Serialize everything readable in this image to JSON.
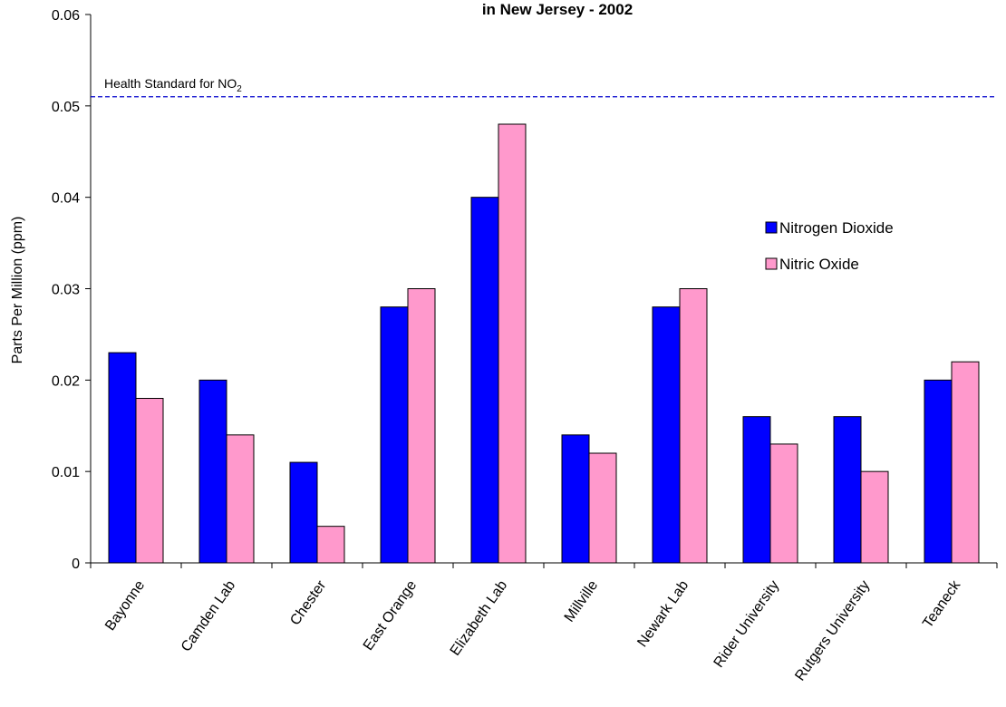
{
  "chart_data": {
    "type": "bar",
    "title": "in New Jersey - 2002",
    "xlabel": "",
    "ylabel": "Parts Per Million (ppm)",
    "ylim": [
      0,
      0.06
    ],
    "yticks": [
      "0",
      "0.01",
      "0.02",
      "0.03",
      "0.04",
      "0.05",
      "0.06"
    ],
    "grid": false,
    "legend_position": "right",
    "categories": [
      "Bayonne",
      "Camden Lab",
      "Chester",
      "East Orange",
      "Elizabeth Lab",
      "Millville",
      "Newark Lab",
      "Rider University",
      "Rutgers University",
      "Teaneck"
    ],
    "series": [
      {
        "name": "Nitrogen Dioxide",
        "color": "#0000ff",
        "values": [
          0.023,
          0.02,
          0.011,
          0.028,
          0.04,
          0.014,
          0.028,
          0.016,
          0.016,
          0.02
        ]
      },
      {
        "name": "Nitric Oxide",
        "color": "#ff99cc",
        "values": [
          0.018,
          0.014,
          0.004,
          0.03,
          0.048,
          0.012,
          0.03,
          0.013,
          0.01,
          0.022
        ]
      }
    ],
    "reference_line": {
      "value": 0.051,
      "label_prefix": "Health Standard for NO",
      "label_subscript": "2",
      "color": "#0000cc"
    }
  }
}
